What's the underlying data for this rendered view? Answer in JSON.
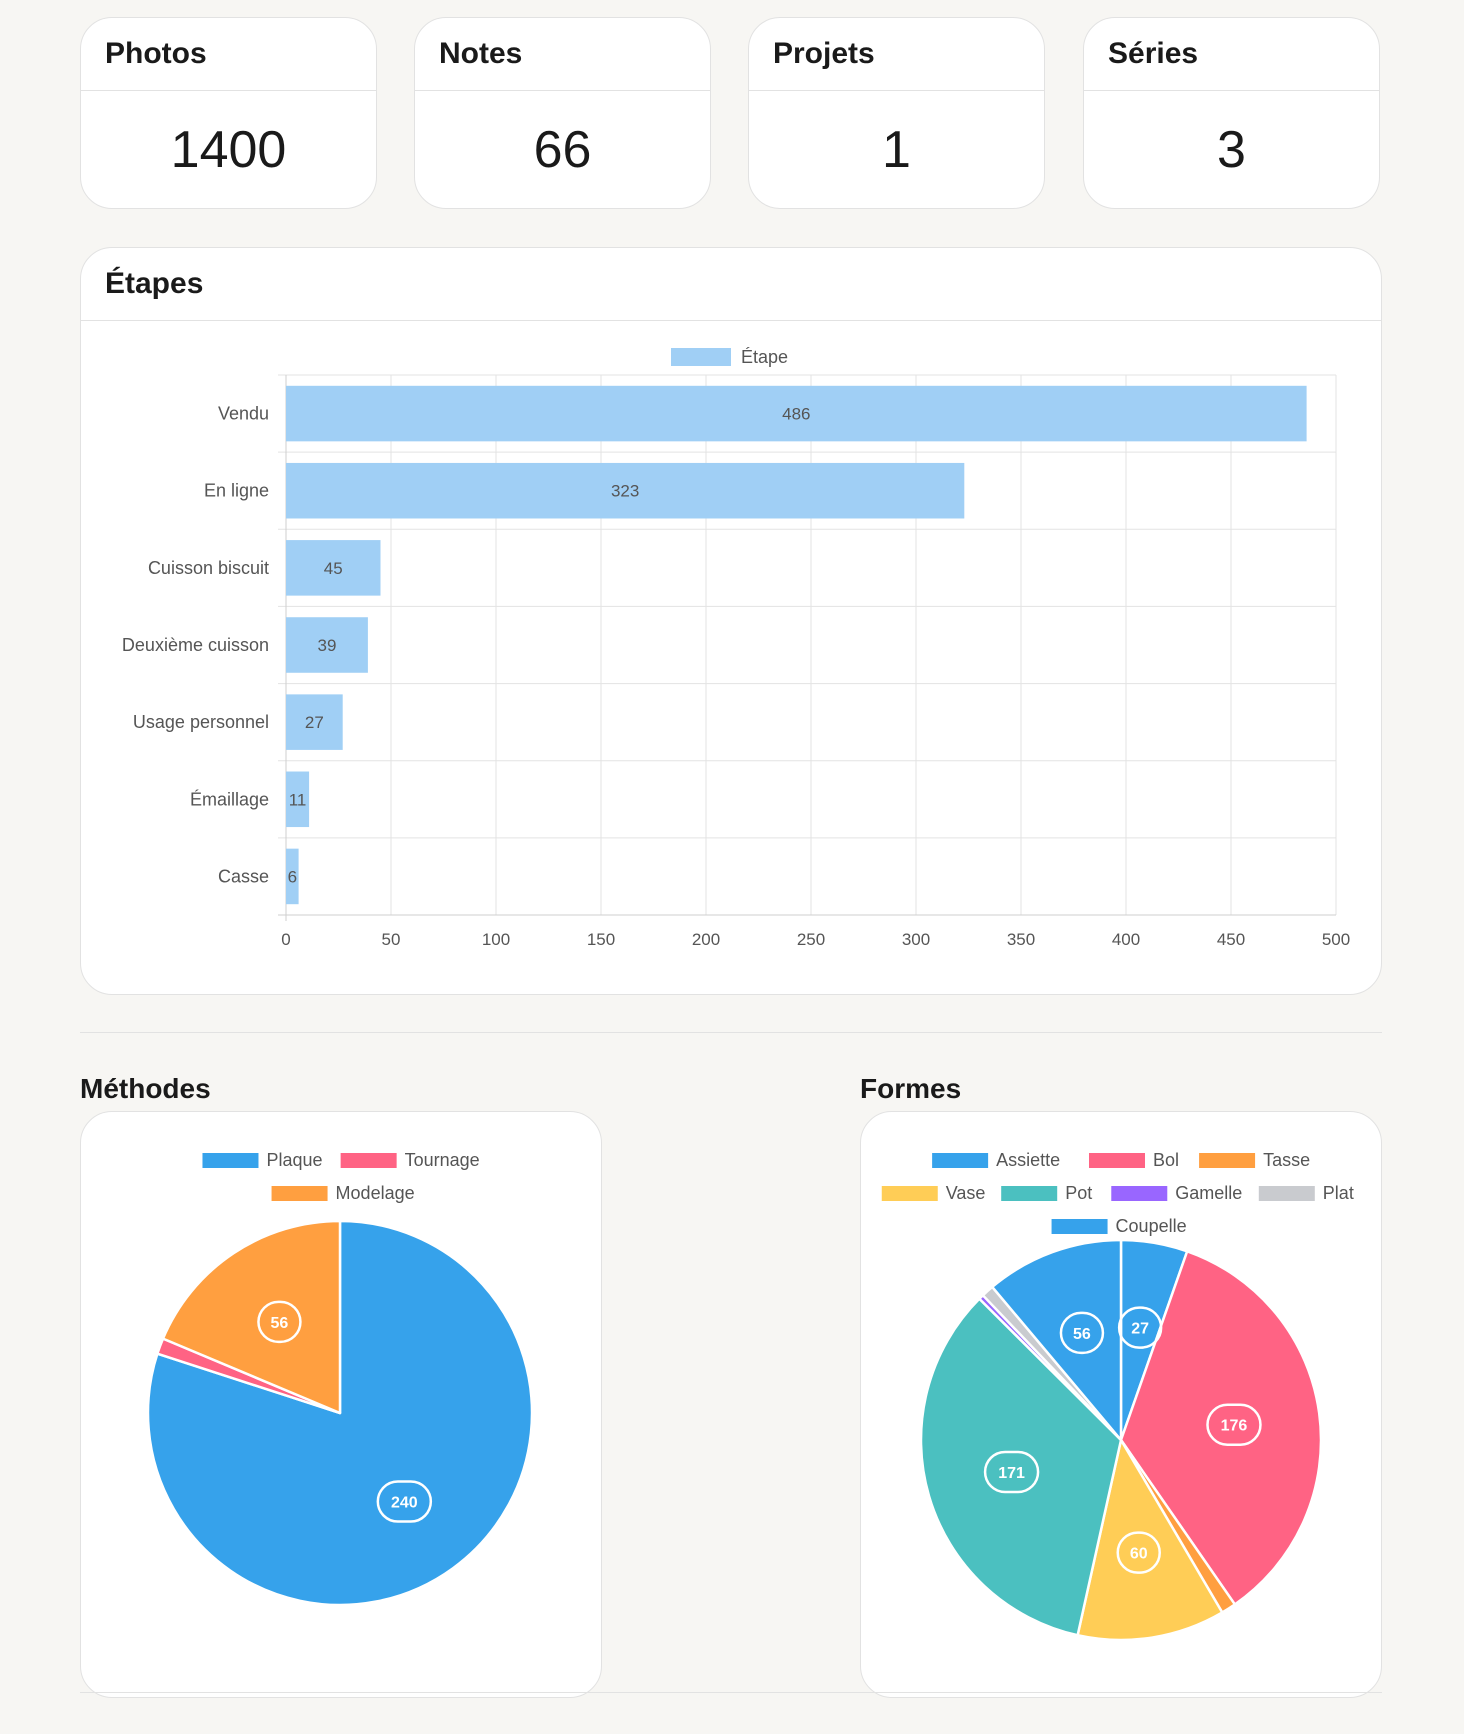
{
  "stats": [
    {
      "label": "Photos",
      "value": "1400"
    },
    {
      "label": "Notes",
      "value": "66"
    },
    {
      "label": "Projets",
      "value": "1"
    },
    {
      "label": "Séries",
      "value": "3"
    }
  ],
  "etapes": {
    "title": "Étapes"
  },
  "methodes": {
    "title": "Méthodes"
  },
  "formes": {
    "title": "Formes"
  },
  "colors": {
    "bar": "#a0cff5",
    "blue": "#36a2eb",
    "red": "#ff6384",
    "orange": "#ff9f40",
    "yellow": "#ffcd56",
    "teal": "#4bc0c0",
    "purple": "#9966ff",
    "grey": "#c9cbcf"
  },
  "chart_data": [
    {
      "type": "bar",
      "orientation": "horizontal",
      "title": "Étapes",
      "legend": [
        "Étape"
      ],
      "legend_position": "top",
      "categories": [
        "Vendu",
        "En ligne",
        "Cuisson biscuit",
        "Deuxième cuisson",
        "Usage personnel",
        "Émaillage",
        "Casse"
      ],
      "series": [
        {
          "name": "Étape",
          "values": [
            486,
            323,
            45,
            39,
            27,
            11,
            6
          ]
        }
      ],
      "xlim": [
        0,
        500
      ],
      "xticks": [
        0,
        50,
        100,
        150,
        200,
        250,
        300,
        350,
        400,
        450,
        500
      ],
      "grid": true,
      "data_labels": true
    },
    {
      "type": "pie",
      "title": "Méthodes",
      "legend_position": "top",
      "labels": [
        "Plaque",
        "Tournage",
        "Modelage"
      ],
      "values": [
        240,
        4,
        56
      ],
      "colors": [
        "#36a2eb",
        "#ff6384",
        "#ff9f40"
      ],
      "data_labels": [
        "240",
        "",
        "56"
      ]
    },
    {
      "type": "pie",
      "title": "Formes",
      "legend_position": "top",
      "labels": [
        "Assiette",
        "Bol",
        "Tasse",
        "Vase",
        "Pot",
        "Gamelle",
        "Plat",
        "Coupelle"
      ],
      "values": [
        27,
        176,
        6,
        60,
        171,
        2,
        5,
        56
      ],
      "colors": [
        "#36a2eb",
        "#ff6384",
        "#ff9f40",
        "#ffcd56",
        "#4bc0c0",
        "#9966ff",
        "#c9cbcf",
        "#36a2eb"
      ],
      "data_labels": [
        "27",
        "176",
        "",
        "60",
        "171",
        "",
        "",
        "56"
      ]
    }
  ]
}
